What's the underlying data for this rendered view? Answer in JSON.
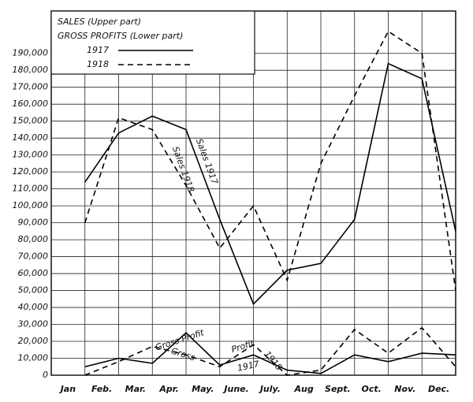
{
  "chart_data": {
    "type": "line",
    "legend_title_upper": "SALES (Upper part)",
    "legend_title_lower": "GROSS PROFITS (Lower part)",
    "categories": [
      "Jan",
      "Feb.",
      "Mar.",
      "Apr.",
      "May.",
      "June.",
      "July.",
      "Aug",
      "Sept.",
      "Oct.",
      "Nov.",
      "Dec."
    ],
    "series": [
      {
        "name": "1917",
        "color": "#000000",
        "dashed": false,
        "sales": [
          114000,
          143000,
          153000,
          145000,
          92000,
          42000,
          62000,
          66000,
          92000,
          184000,
          175000,
          85000
        ],
        "gross_profits": [
          5000,
          10000,
          7000,
          25000,
          6000,
          12000,
          3000,
          1000,
          12000,
          8000,
          13000,
          12000
        ]
      },
      {
        "name": "1918",
        "color": "#000000",
        "dashed": true,
        "sales": [
          90000,
          152000,
          145000,
          112000,
          75000,
          100000,
          56000,
          125000,
          165000,
          203000,
          190000,
          50000
        ],
        "gross_profits": [
          0,
          8000,
          17000,
          12000,
          5000,
          18000,
          0,
          3000,
          27000,
          13000,
          28000,
          5000
        ]
      }
    ],
    "annotations": [
      "Sales 1917",
      "Sales 1918",
      "Gross Profit",
      "Gross",
      "1917",
      "Profit",
      "1918"
    ],
    "ylim": [
      0,
      215000
    ],
    "yticks": [
      0,
      {
        "value": 10000,
        "label": "10,000"
      },
      {
        "value": 20000,
        "label": "20,000"
      },
      {
        "value": 30000,
        "label": "30,000"
      },
      {
        "value": 40000,
        "label": "40,000"
      },
      {
        "value": 50000,
        "label": "50,000"
      },
      {
        "value": 60000,
        "label": "60,000"
      },
      {
        "value": 70000,
        "label": "70,000"
      },
      {
        "value": 80000,
        "label": "80,000"
      },
      {
        "value": 90000,
        "label": "90,000"
      },
      {
        "value": 100000,
        "label": "100,000"
      },
      {
        "value": 110000,
        "label": "110,000"
      },
      {
        "value": 120000,
        "label": "120,000"
      },
      {
        "value": 130000,
        "label": "130,000"
      },
      {
        "value": 140000,
        "label": "140,000"
      },
      {
        "value": 150000,
        "label": "150,000"
      },
      {
        "value": 160000,
        "label": "160,000"
      },
      {
        "value": 170000,
        "label": "170,000"
      },
      {
        "value": 180000,
        "label": "180,000"
      },
      {
        "value": 190000,
        "label": "190,000"
      }
    ],
    "grid": true
  }
}
